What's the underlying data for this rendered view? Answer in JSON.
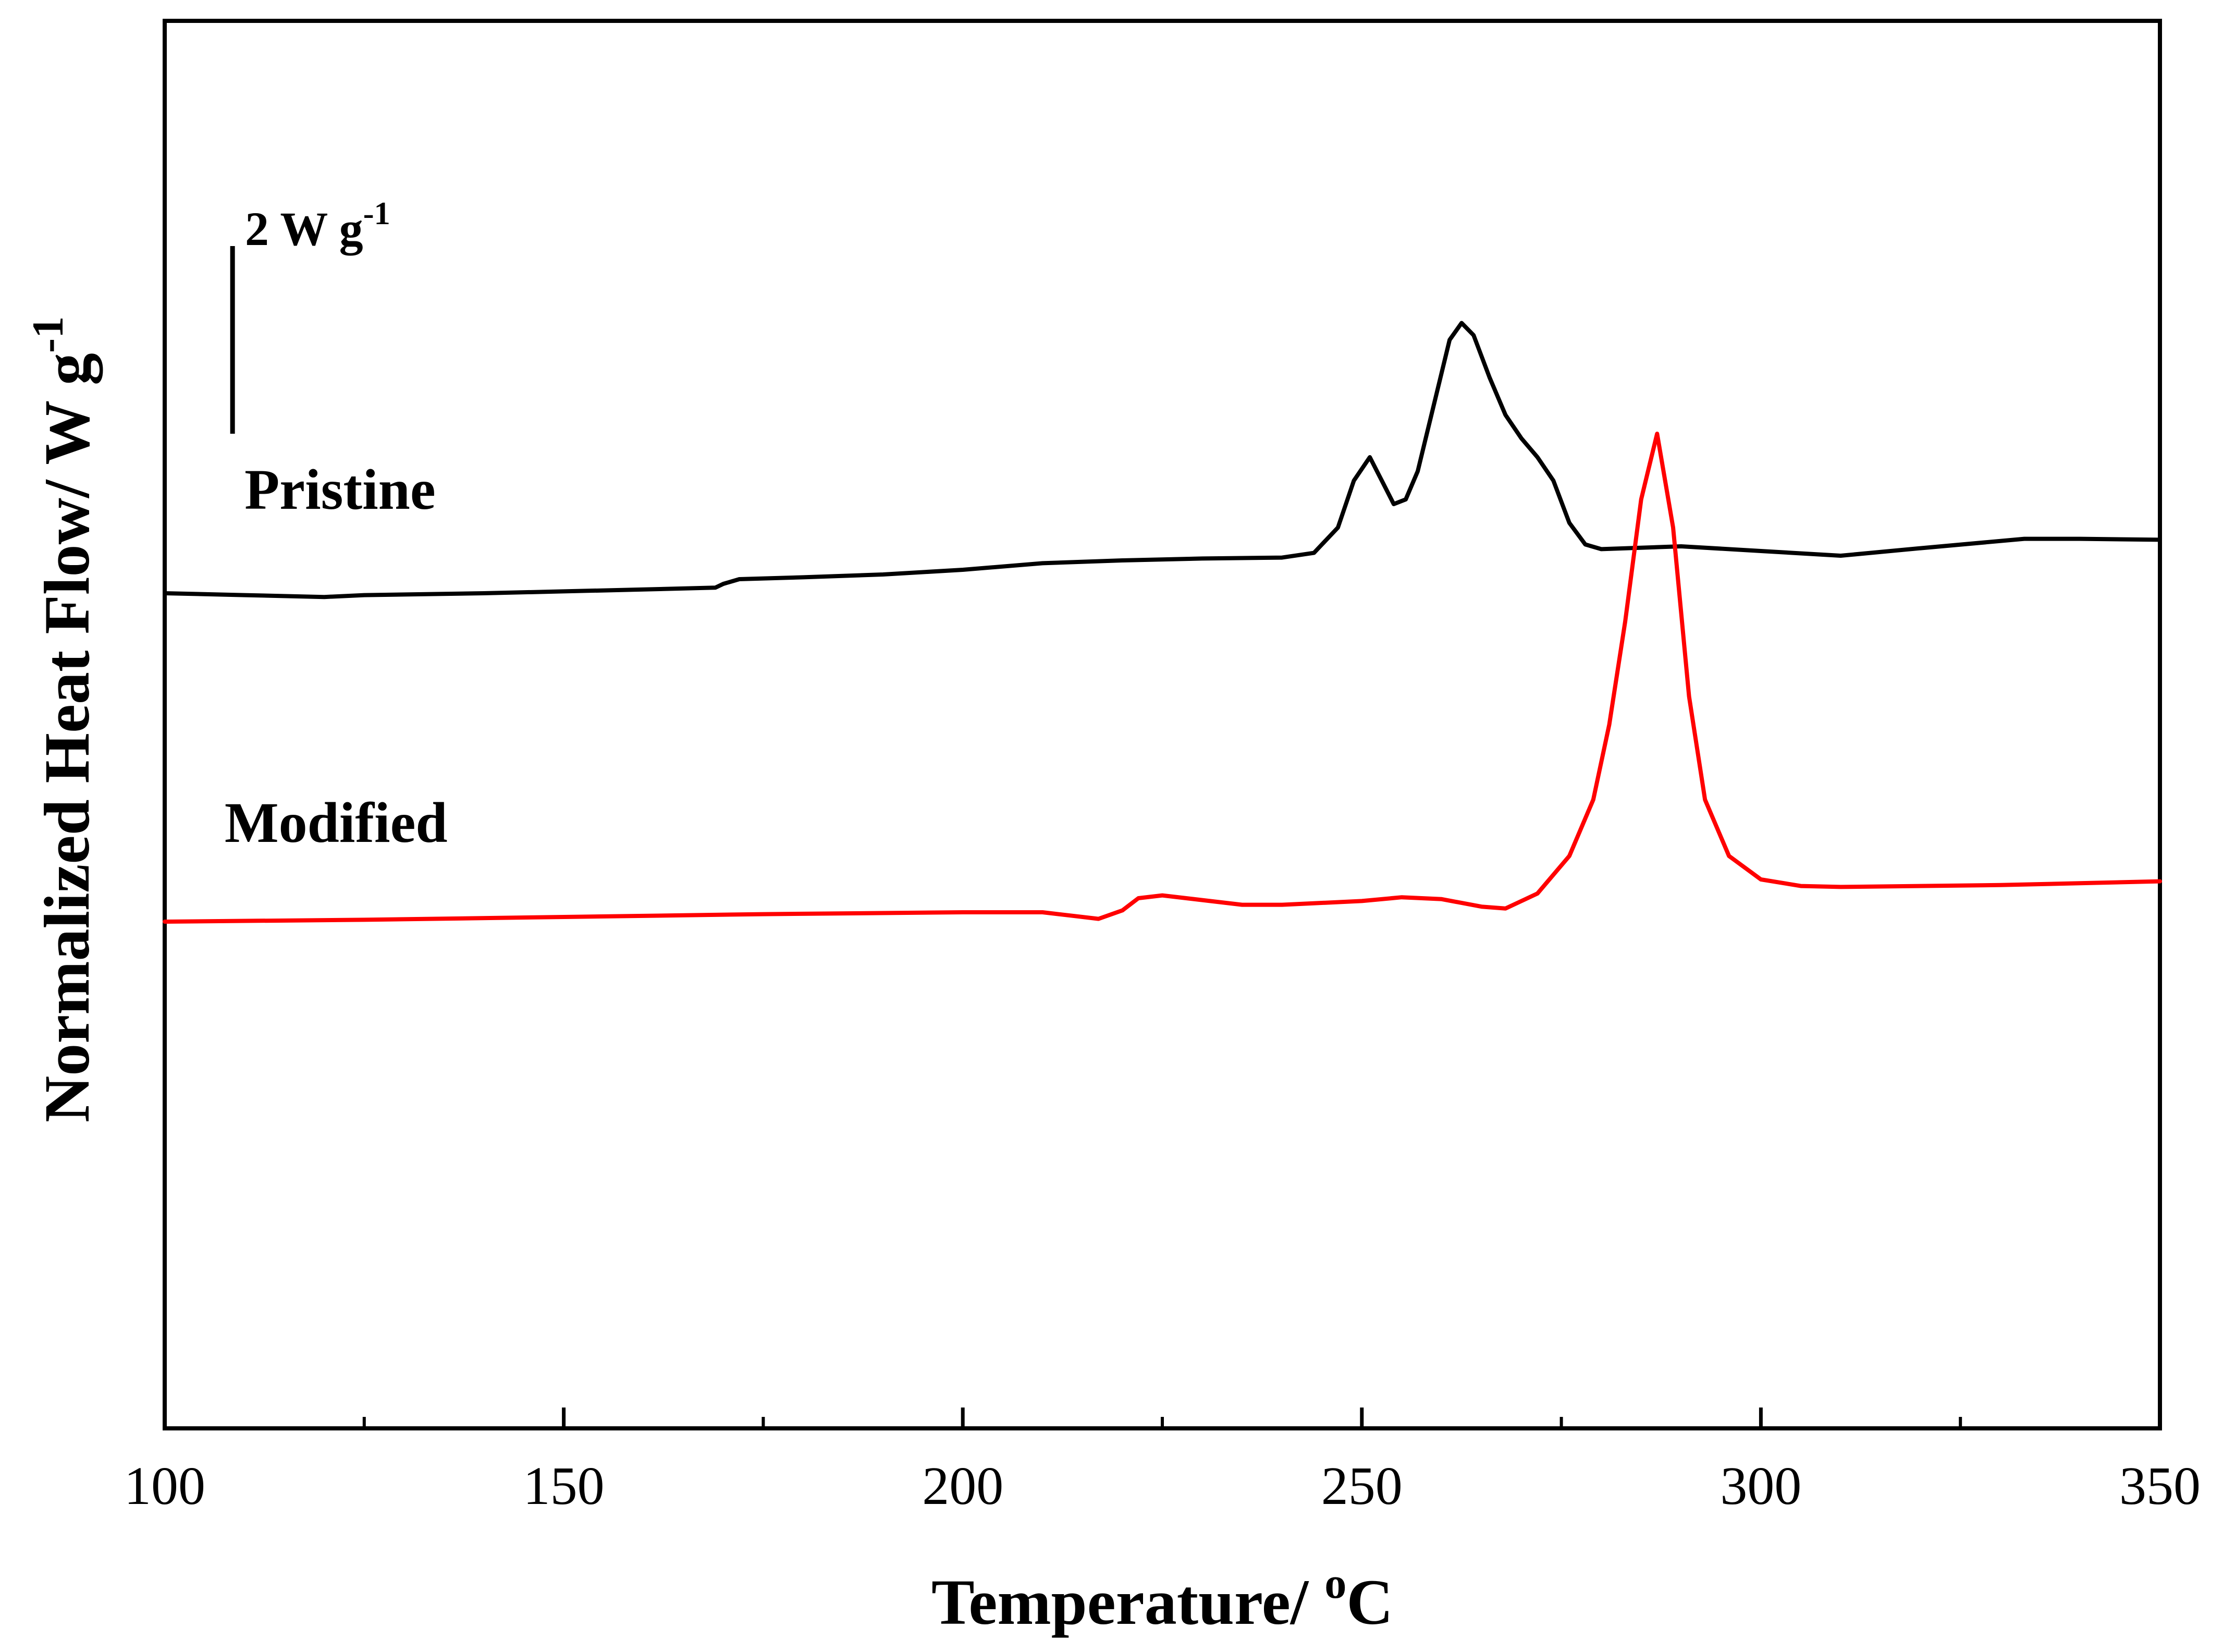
{
  "chart_data": {
    "type": "line",
    "title": "",
    "xlabel": {
      "text": "Temperature/ ",
      "superscript": "o",
      "unit": "C"
    },
    "ylabel": {
      "text": "Normalized Heat Flow/ W g",
      "superscript": "-1"
    },
    "xlim": [
      100,
      350
    ],
    "ylim": [
      -0.3,
      14.7
    ],
    "x_ticks": [
      100,
      150,
      200,
      250,
      300,
      350
    ],
    "x_tick_labels": [
      "100",
      "150",
      "200",
      "250",
      "300",
      "350"
    ],
    "x_minor_ticks": [
      125,
      175,
      225,
      275,
      325
    ],
    "y_ticks_shown": false,
    "grid": false,
    "scale_bar": {
      "value": 2,
      "label": "2 W g",
      "superscript": "-1",
      "x_position": 108.5,
      "y_bottom": 10.3,
      "y_top": 12.3
    },
    "series": [
      {
        "name": "Pristine",
        "color": "#000000",
        "points": [
          [
            100,
            8.6
          ],
          [
            110,
            8.58
          ],
          [
            120,
            8.56
          ],
          [
            125,
            8.58
          ],
          [
            140,
            8.6
          ],
          [
            150,
            8.62
          ],
          [
            160,
            8.64
          ],
          [
            169,
            8.66
          ],
          [
            170,
            8.7
          ],
          [
            172,
            8.75
          ],
          [
            180,
            8.77
          ],
          [
            190,
            8.8
          ],
          [
            200,
            8.85
          ],
          [
            210,
            8.92
          ],
          [
            220,
            8.95
          ],
          [
            230,
            8.97
          ],
          [
            240,
            8.98
          ],
          [
            244,
            9.03
          ],
          [
            247,
            9.3
          ],
          [
            249,
            9.8
          ],
          [
            251,
            10.05
          ],
          [
            252.5,
            9.8
          ],
          [
            254,
            9.55
          ],
          [
            255.5,
            9.6
          ],
          [
            257,
            9.9
          ],
          [
            259,
            10.6
          ],
          [
            261,
            11.3
          ],
          [
            262.5,
            11.48
          ],
          [
            264,
            11.35
          ],
          [
            266,
            10.9
          ],
          [
            268,
            10.5
          ],
          [
            270,
            10.25
          ],
          [
            272,
            10.05
          ],
          [
            274,
            9.8
          ],
          [
            276,
            9.35
          ],
          [
            278,
            9.12
          ],
          [
            280,
            9.07
          ],
          [
            290,
            9.1
          ],
          [
            300,
            9.05
          ],
          [
            310,
            9.0
          ],
          [
            320,
            9.08
          ],
          [
            333,
            9.18
          ],
          [
            340,
            9.18
          ],
          [
            350,
            9.17
          ]
        ]
      },
      {
        "name": "Modified",
        "color": "#ff0000",
        "points": [
          [
            100,
            5.1
          ],
          [
            125,
            5.12
          ],
          [
            150,
            5.15
          ],
          [
            175,
            5.18
          ],
          [
            200,
            5.2
          ],
          [
            210,
            5.2
          ],
          [
            214,
            5.16
          ],
          [
            217,
            5.13
          ],
          [
            220,
            5.22
          ],
          [
            222,
            5.35
          ],
          [
            225,
            5.38
          ],
          [
            230,
            5.33
          ],
          [
            235,
            5.28
          ],
          [
            240,
            5.28
          ],
          [
            250,
            5.32
          ],
          [
            255,
            5.36
          ],
          [
            260,
            5.34
          ],
          [
            265,
            5.26
          ],
          [
            268,
            5.24
          ],
          [
            272,
            5.4
          ],
          [
            276,
            5.8
          ],
          [
            279,
            6.4
          ],
          [
            281,
            7.2
          ],
          [
            283,
            8.3
          ],
          [
            285,
            9.6
          ],
          [
            287,
            10.3
          ],
          [
            289,
            9.3
          ],
          [
            291,
            7.5
          ],
          [
            293,
            6.4
          ],
          [
            296,
            5.8
          ],
          [
            300,
            5.55
          ],
          [
            305,
            5.48
          ],
          [
            310,
            5.47
          ],
          [
            330,
            5.49
          ],
          [
            350,
            5.53
          ]
        ]
      }
    ],
    "annotations": [
      {
        "text": "Pristine",
        "x": 110,
        "y": 9.5
      },
      {
        "text": "Modified",
        "x": 107.5,
        "y": 5.95
      }
    ]
  }
}
